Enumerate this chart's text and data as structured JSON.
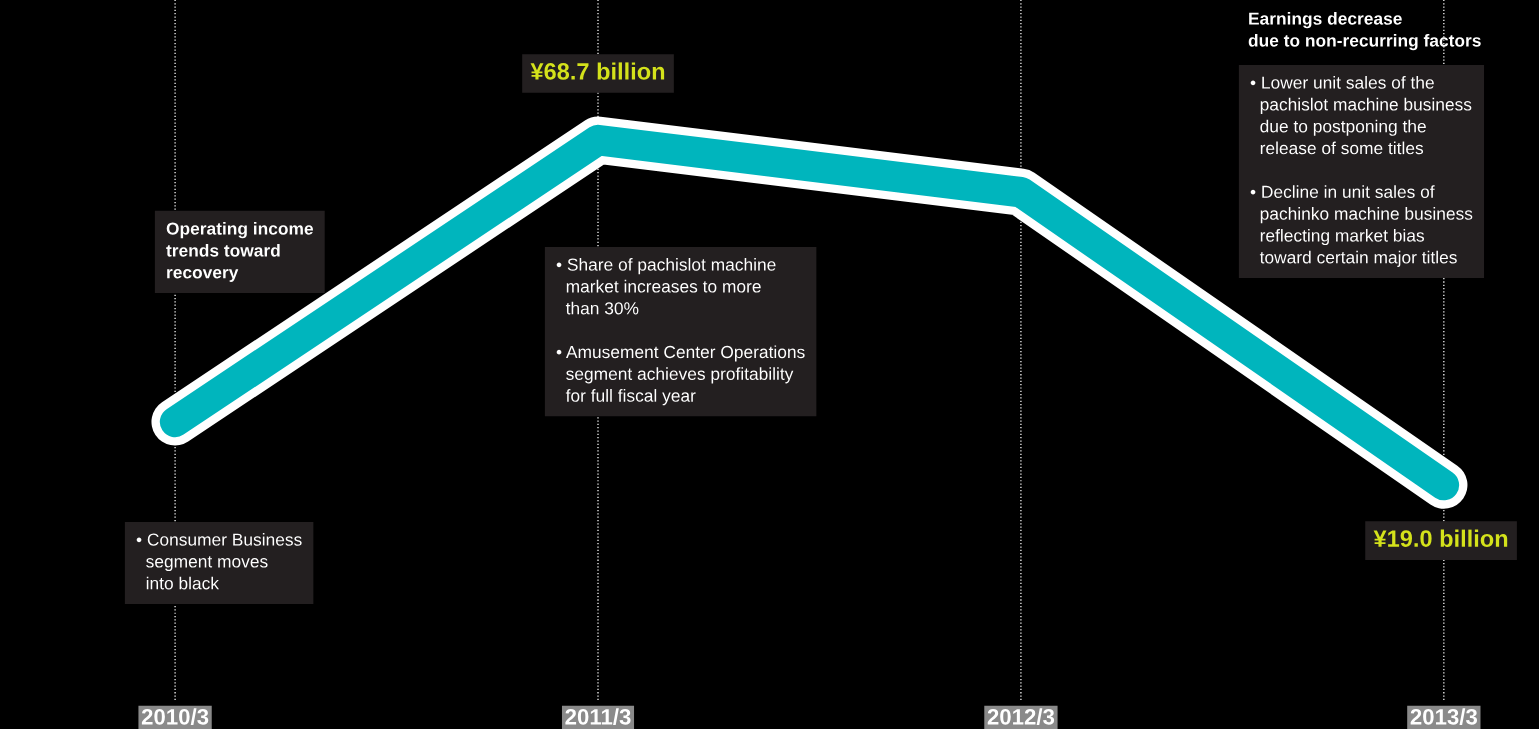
{
  "chart_data": {
    "type": "line",
    "categories": [
      "2010/3",
      "2011/3",
      "2012/3",
      "2013/3"
    ],
    "tick_labels": "x",
    "grid": "x",
    "marker": "none",
    "line_style": "solid",
    "series": [
      {
        "color": "#00b5bd",
        "values": [
          28.1,
          68.7,
          61.2,
          19.0
        ],
        "value_labels": [
          null,
          "¥68.7 billion",
          null,
          "¥19.0 billion"
        ]
      }
    ],
    "annotations": [
      "Operating income\ntrends toward\nrecovery",
      "• Consumer Business\n  segment moves\n  into black",
      "• Share of pachislot machine\n  market increases to more\n  than 30%\n\n• Amusement Center Operations\n  segment achieves profitability\n  for full fiscal year",
      "Earnings decrease\ndue to non-recurring factors",
      "• Lower unit sales of the\n  pachislot machine business\n  due to postponing the\n  release of some titles\n\n• Decline in unit sales of\n  pachinko machine business\n  reflecting market bias\n  toward certain major titles"
    ]
  }
}
